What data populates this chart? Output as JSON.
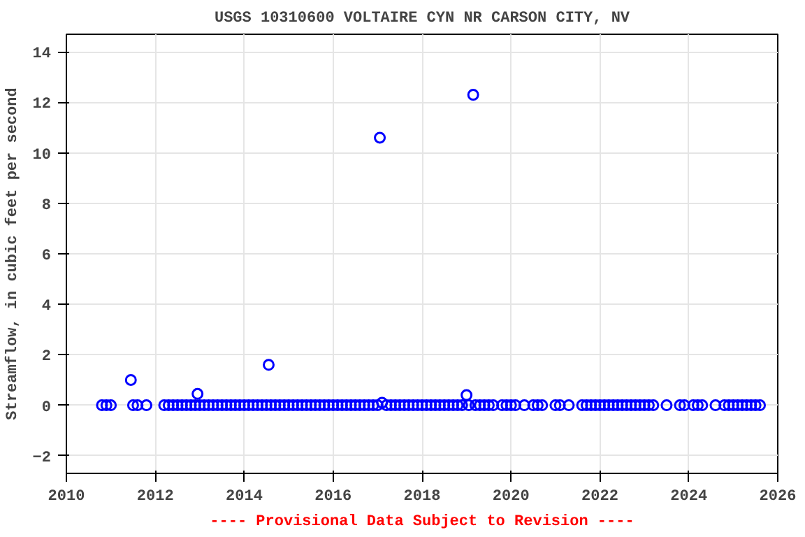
{
  "chart_data": {
    "type": "scatter",
    "title": "USGS 10310600 VOLTAIRE CYN NR CARSON CITY, NV",
    "ylabel": "Streamflow, in cubic feet per second",
    "annotations": [
      "---- Provisional Data Subject to Revision ----"
    ],
    "x": [
      2010.8,
      2010.9,
      2011.0,
      2011.45,
      2011.5,
      2011.6,
      2011.8,
      2012.2,
      2012.3,
      2012.4,
      2012.5,
      2012.6,
      2012.7,
      2012.8,
      2012.9,
      2012.95,
      2013.0,
      2013.1,
      2013.2,
      2013.3,
      2013.4,
      2013.5,
      2013.6,
      2013.7,
      2013.8,
      2013.9,
      2014.0,
      2014.1,
      2014.2,
      2014.3,
      2014.4,
      2014.5,
      2014.55,
      2014.6,
      2014.7,
      2014.8,
      2014.9,
      2015.0,
      2015.1,
      2015.2,
      2015.3,
      2015.4,
      2015.5,
      2015.6,
      2015.7,
      2015.8,
      2015.9,
      2016.0,
      2016.1,
      2016.2,
      2016.3,
      2016.4,
      2016.5,
      2016.6,
      2016.7,
      2016.8,
      2016.9,
      2017.0,
      2017.05,
      2017.1,
      2017.2,
      2017.3,
      2017.4,
      2017.5,
      2017.6,
      2017.7,
      2017.8,
      2017.9,
      2018.0,
      2018.1,
      2018.2,
      2018.3,
      2018.4,
      2018.5,
      2018.6,
      2018.7,
      2018.8,
      2018.9,
      2019.0,
      2019.05,
      2019.15,
      2019.2,
      2019.3,
      2019.4,
      2019.5,
      2019.6,
      2019.8,
      2019.9,
      2020.0,
      2020.1,
      2020.3,
      2020.5,
      2020.6,
      2020.7,
      2021.0,
      2021.1,
      2021.3,
      2021.6,
      2021.7,
      2021.8,
      2021.9,
      2022.0,
      2022.1,
      2022.2,
      2022.3,
      2022.4,
      2022.5,
      2022.6,
      2022.7,
      2022.8,
      2022.9,
      2023.0,
      2023.1,
      2023.2,
      2023.5,
      2023.8,
      2023.9,
      2024.1,
      2024.2,
      2024.3,
      2024.6,
      2024.8,
      2024.9,
      2025.0,
      2025.1,
      2025.2,
      2025.3,
      2025.4,
      2025.5,
      2025.6
    ],
    "values": [
      0,
      0,
      0,
      1.0,
      0,
      0,
      0,
      0,
      0,
      0,
      0,
      0,
      0,
      0,
      0,
      0.45,
      0,
      0,
      0,
      0,
      0,
      0,
      0,
      0,
      0,
      0,
      0,
      0,
      0,
      0,
      0,
      0,
      1.6,
      0,
      0,
      0,
      0,
      0,
      0,
      0,
      0,
      0,
      0,
      0,
      0,
      0,
      0,
      0,
      0,
      0,
      0,
      0,
      0,
      0,
      0,
      0,
      0,
      0,
      10.6,
      0.1,
      0,
      0,
      0,
      0,
      0,
      0,
      0,
      0,
      0,
      0,
      0,
      0,
      0,
      0,
      0,
      0,
      0,
      0,
      0.4,
      0,
      12.3,
      0,
      0,
      0,
      0,
      0,
      0,
      0,
      0,
      0,
      0,
      0,
      0,
      0,
      0,
      0,
      0,
      0,
      0,
      0,
      0,
      0,
      0,
      0,
      0,
      0,
      0,
      0,
      0,
      0,
      0,
      0,
      0,
      0,
      0,
      0,
      0,
      0,
      0,
      0,
      0,
      0,
      0,
      0,
      0,
      0,
      0,
      0,
      0,
      0
    ],
    "color": "#0000ff",
    "marker": "circle",
    "grid": true,
    "xlim": [
      2010,
      2026
    ],
    "xticks": [
      2010,
      2012,
      2014,
      2016,
      2018,
      2020,
      2022,
      2024,
      2026
    ],
    "ylim": [
      -2.7,
      14.7
    ],
    "yticks": [
      -2,
      0,
      2,
      4,
      6,
      8,
      10,
      12,
      14
    ]
  }
}
